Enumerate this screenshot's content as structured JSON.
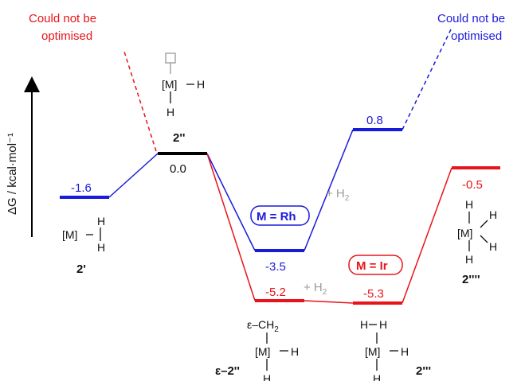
{
  "diagram": {
    "axis_label": "ΔG / kcal·mol⁻¹",
    "colors": {
      "rh": "#1a1adb",
      "ir": "#e8141b",
      "common": "#000000",
      "grey": "#9a9a9a"
    },
    "levels": [
      {
        "id": "l2p",
        "compound": "2'",
        "value": "-1.6",
        "color": "rh"
      },
      {
        "id": "l2pp",
        "compound": "2''",
        "value": "0.0",
        "color": "common"
      },
      {
        "id": "lrh_eps",
        "value": "-3.5",
        "color": "rh"
      },
      {
        "id": "lrh_h2",
        "value": "0.8",
        "color": "rh"
      },
      {
        "id": "lir_eps",
        "compound": "ε–2''",
        "value": "-5.2",
        "color": "ir"
      },
      {
        "id": "lir_2ppp",
        "compound": "2'''",
        "value": "-5.3",
        "color": "ir"
      },
      {
        "id": "lir_2pppp",
        "compound": "2''''",
        "value": "-0.5",
        "color": "ir"
      }
    ],
    "notes": {
      "ir_not_optimised_line1": "Could not be",
      "ir_not_optimised_line2": "optimised",
      "rh_not_optimised_line1": "Could not be",
      "rh_not_optimised_line2": "optimised"
    },
    "badges": {
      "rh": "M = Rh",
      "ir": "M = Ir"
    },
    "h2_label": "+ H",
    "h2_sub": "2",
    "structures": {
      "M": "[M]",
      "H": "H",
      "CH2": "ε–CH",
      "CH2_sub": "2"
    }
  }
}
